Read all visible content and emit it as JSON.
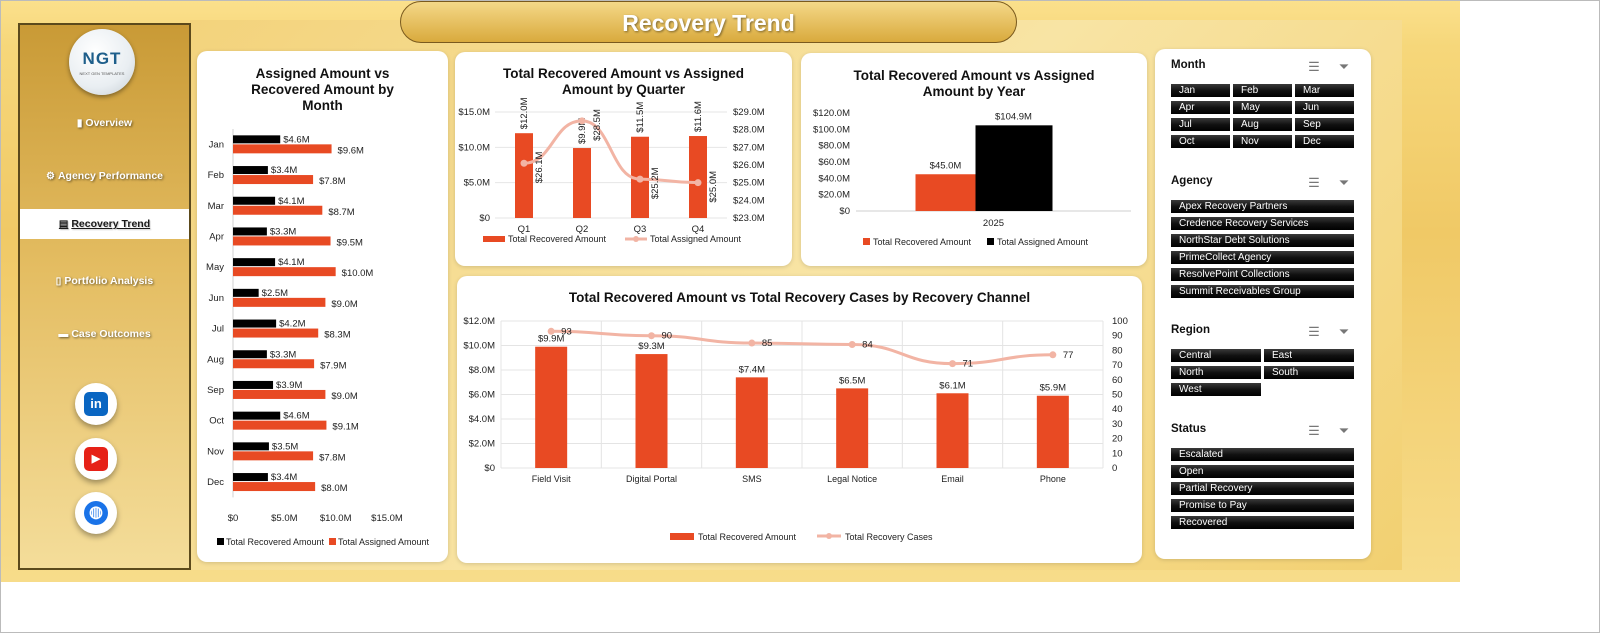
{
  "header": {
    "title": "Recovery Trend"
  },
  "logo": {
    "text": "NGT",
    "subtext": "NEXT GEN TEMPLATES"
  },
  "nav": [
    {
      "label": "Overview",
      "icon": "bar-chart-icon"
    },
    {
      "label": "Agency Performance",
      "icon": "gear-icon"
    },
    {
      "label": "Recovery Trend",
      "icon": "trend-chart-icon",
      "active": true
    },
    {
      "label": "Portfolio Analysis",
      "icon": "document-icon"
    },
    {
      "label": "Case Outcomes",
      "icon": "folder-icon"
    }
  ],
  "social": [
    {
      "name": "linkedin-icon",
      "glyph": "in",
      "color": "#0a66c2"
    },
    {
      "name": "youtube-icon",
      "glyph": "▶",
      "color": "#e62117"
    },
    {
      "name": "globe-icon",
      "glyph": "◍",
      "color": "#1a73e8"
    }
  ],
  "colors": {
    "recovered": "#e84a23",
    "assigned_month": "#000000",
    "assigned_year": "#000000",
    "assigned_line": "#f2b4a4",
    "cases_line": "#f2b4a4"
  },
  "charts": {
    "month": {
      "title_l1": "Assigned Amount vs",
      "title_l2": "Recovered Amount by",
      "title_l3": "Month",
      "legend_recovered": "Total Recovered Amount",
      "legend_assigned": "Total Assigned Amount",
      "x_ticks": [
        "$0",
        "$5.0M",
        "$10.0M",
        "$15.0M"
      ],
      "chart_data": {
        "type": "bar",
        "orientation": "horizontal",
        "categories": [
          "Jan",
          "Feb",
          "Mar",
          "Apr",
          "May",
          "Jun",
          "Jul",
          "Aug",
          "Sep",
          "Oct",
          "Nov",
          "Dec"
        ],
        "series": [
          {
            "name": "Total Recovered Amount",
            "values": [
              4.6,
              3.4,
              4.1,
              3.3,
              4.1,
              2.5,
              4.2,
              3.3,
              3.9,
              4.6,
              3.5,
              3.4
            ],
            "labels": [
              "$4.6M",
              "$3.4M",
              "$4.1M",
              "$3.3M",
              "$4.1M",
              "$2.5M",
              "$4.2M",
              "$3.3M",
              "$3.9M",
              "$4.6M",
              "$3.5M",
              "$3.4M"
            ]
          },
          {
            "name": "Total Assigned Amount",
            "values": [
              9.6,
              7.8,
              8.7,
              9.5,
              10.0,
              9.0,
              8.3,
              7.9,
              9.0,
              9.1,
              7.8,
              8.0
            ],
            "labels": [
              "$9.6M",
              "$7.8M",
              "$8.7M",
              "$9.5M",
              "$10.0M",
              "$9.0M",
              "$8.3M",
              "$7.9M",
              "$9.0M",
              "$9.1M",
              "$7.8M",
              "$8.0M"
            ]
          }
        ],
        "xlim": [
          0,
          15
        ]
      }
    },
    "quarter": {
      "title_l1": "Total Recovered Amount vs Assigned",
      "title_l2": "Amount by Quarter",
      "legend_recovered": "Total Recovered Amount",
      "legend_assigned": "Total Assigned Amount",
      "y_left_ticks": [
        "$0",
        "$5.0M",
        "$10.0M",
        "$15.0M"
      ],
      "y_right_ticks": [
        "$23.0M",
        "$24.0M",
        "$25.0M",
        "$26.0M",
        "$27.0M",
        "$28.0M",
        "$29.0M"
      ],
      "chart_data": {
        "type": "bar+line",
        "categories": [
          "Q1",
          "Q2",
          "Q3",
          "Q4"
        ],
        "series": [
          {
            "name": "Total Recovered Amount",
            "type": "bar",
            "axis": "left",
            "values": [
              12.0,
              9.9,
              11.5,
              11.6
            ],
            "labels": [
              "$12.0M",
              "$9.9M",
              "$11.5M",
              "$11.6M"
            ]
          },
          {
            "name": "Total Assigned Amount",
            "type": "line",
            "axis": "right",
            "values": [
              26.1,
              28.5,
              25.2,
              25.0
            ],
            "labels": [
              "$26.1M",
              "$28.5M",
              "$25.2M",
              "$25.0M"
            ]
          }
        ],
        "ylim_left": [
          0,
          15
        ],
        "ylim_right": [
          23,
          29
        ]
      }
    },
    "year": {
      "title_l1": "Total Recovered Amount vs Assigned",
      "title_l2": "Amount by Year",
      "legend_recovered": "Total Recovered Amount",
      "legend_assigned": "Total Assigned Amount",
      "y_ticks": [
        "$0",
        "$20.0M",
        "$40.0M",
        "$60.0M",
        "$80.0M",
        "$100.0M",
        "$120.0M"
      ],
      "chart_data": {
        "type": "bar",
        "categories": [
          "2025"
        ],
        "series": [
          {
            "name": "Total Recovered Amount",
            "values": [
              45.0
            ],
            "labels": [
              "$45.0M"
            ]
          },
          {
            "name": "Total Assigned Amount",
            "values": [
              104.9
            ],
            "labels": [
              "$104.9M"
            ]
          }
        ],
        "ylim": [
          0,
          120
        ]
      }
    },
    "channel": {
      "title": "Total Recovered Amount vs Total Recovery Cases by Recovery Channel",
      "legend_recovered": "Total Recovered Amount",
      "legend_cases": "Total Recovery Cases",
      "y_left_ticks": [
        "$0",
        "$2.0M",
        "$4.0M",
        "$6.0M",
        "$8.0M",
        "$10.0M",
        "$12.0M"
      ],
      "y_right_ticks": [
        "0",
        "10",
        "20",
        "30",
        "40",
        "50",
        "60",
        "70",
        "80",
        "90",
        "100"
      ],
      "chart_data": {
        "type": "bar+line",
        "categories": [
          "Field Visit",
          "Digital Portal",
          "SMS",
          "Legal Notice",
          "Email",
          "Phone"
        ],
        "series": [
          {
            "name": "Total Recovered Amount",
            "type": "bar",
            "axis": "left",
            "values": [
              9.9,
              9.3,
              7.4,
              6.5,
              6.1,
              5.9
            ],
            "labels": [
              "$9.9M",
              "$9.3M",
              "$7.4M",
              "$6.5M",
              "$6.1M",
              "$5.9M"
            ]
          },
          {
            "name": "Total Recovery Cases",
            "type": "line",
            "axis": "right",
            "values": [
              93,
              90,
              85,
              84,
              71,
              77
            ],
            "labels": [
              "93",
              "90",
              "85",
              "84",
              "71",
              "77"
            ]
          }
        ],
        "ylim_left": [
          0,
          12
        ],
        "ylim_right": [
          0,
          100
        ]
      }
    }
  },
  "slicers": [
    {
      "title": "Month",
      "cols": 3,
      "items": [
        "Jan",
        "Feb",
        "Mar",
        "Apr",
        "May",
        "Jun",
        "Jul",
        "Aug",
        "Sep",
        "Oct",
        "Nov",
        "Dec"
      ]
    },
    {
      "title": "Agency",
      "cols": 1,
      "items": [
        "Apex Recovery Partners",
        "Credence Recovery Services",
        "NorthStar Debt Solutions",
        "PrimeCollect Agency",
        "ResolvePoint Collections",
        "Summit Receivables Group"
      ]
    },
    {
      "title": "Region",
      "cols": 2,
      "items": [
        "Central",
        "East",
        "North",
        "South",
        "West"
      ]
    },
    {
      "title": "Status",
      "cols": 1,
      "items": [
        "Escalated",
        "Open",
        "Partial Recovery",
        "Promise to Pay",
        "Recovered"
      ]
    }
  ]
}
